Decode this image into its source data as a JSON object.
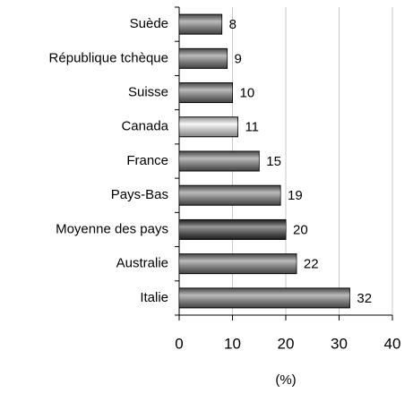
{
  "chart_data": {
    "type": "hbar",
    "x_label": "(%)",
    "categories": [
      "Suède",
      "République tchèque",
      "Suisse",
      "Canada",
      "France",
      "Pays-Bas",
      "Moyenne des pays",
      "Australie",
      "Italie"
    ],
    "values": [
      8,
      9,
      10,
      11,
      15,
      19,
      20,
      22,
      32
    ],
    "colors": [
      "#7a7a7a",
      "#7a7a7a",
      "#7a7a7a",
      "#f2f2f2",
      "#7a7a7a",
      "#7a7a7a",
      "#333333",
      "#7a7a7a",
      "#7a7a7a"
    ],
    "xlim": [
      0,
      40
    ],
    "xticks": [
      0,
      10,
      20,
      30,
      40
    ],
    "grid": true
  }
}
